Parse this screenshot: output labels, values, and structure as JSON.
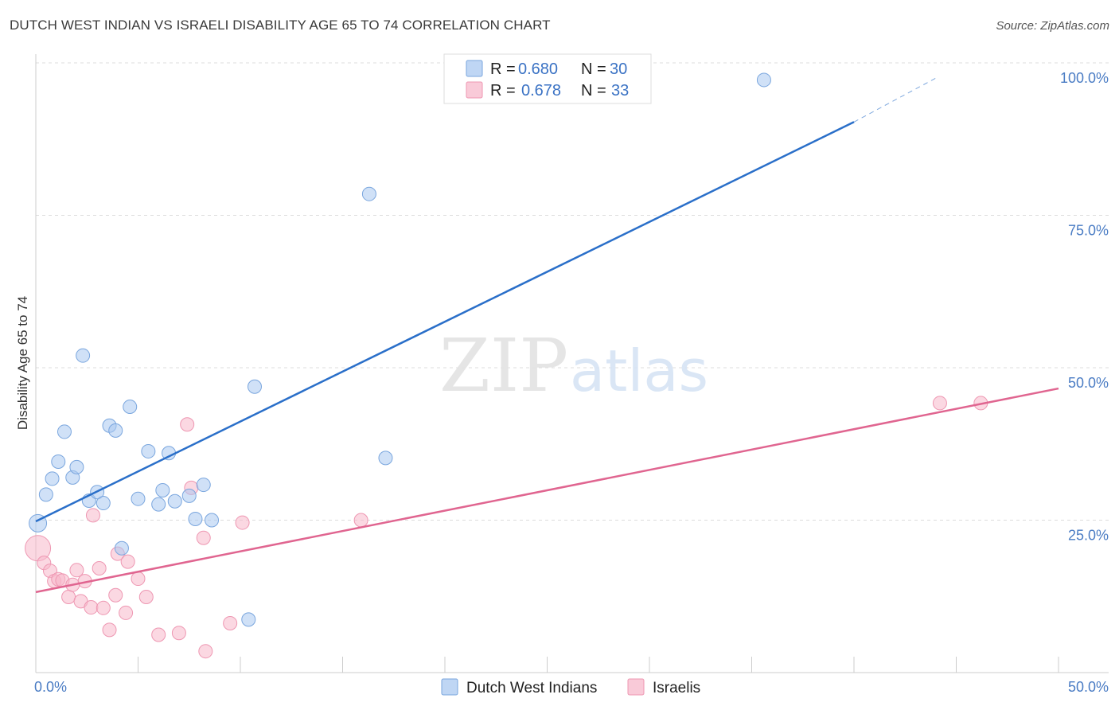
{
  "header": {
    "title": "DUTCH WEST INDIAN VS ISRAELI DISABILITY AGE 65 TO 74 CORRELATION CHART",
    "source": "Source: ZipAtlas.com"
  },
  "watermark": {
    "zip": "ZIP",
    "atlas": "atlas"
  },
  "legend": {
    "rows": [
      {
        "r_label": "R =",
        "r_value": "0.680",
        "n_label": "N =",
        "n_value": "30"
      },
      {
        "r_label": "R =",
        "r_value": "0.678",
        "n_label": "N =",
        "n_value": "33"
      }
    ]
  },
  "colors": {
    "blue_fill": "#a9c8f0",
    "blue_stroke": "#7aa6de",
    "blue_line": "#2a6fc9",
    "pink_fill": "#f7b8cb",
    "pink_stroke": "#ee97b2",
    "pink_line": "#e06590",
    "grid": "#dddddd",
    "axis_label": "#4a7cc4"
  },
  "chart_data": {
    "type": "scatter",
    "title": "DUTCH WEST INDIAN VS ISRAELI DISABILITY AGE 65 TO 74 CORRELATION CHART",
    "xlabel": "",
    "ylabel": "Disability Age 65 to 74",
    "xlim": [
      0,
      50
    ],
    "ylim": [
      0,
      100
    ],
    "x_tick_labels": [
      "0.0%",
      "50.0%"
    ],
    "y_ticks": [
      25,
      50,
      75,
      100
    ],
    "y_tick_labels": [
      "25.0%",
      "50.0%",
      "75.0%",
      "100.0%"
    ],
    "grid": true,
    "legend_position": "top-center",
    "series": [
      {
        "name": "Dutch West Indians",
        "color": "#a9c8f0",
        "points": [
          [
            0.1,
            24.5
          ],
          [
            0.5,
            29.2
          ],
          [
            0.8,
            31.8
          ],
          [
            1.1,
            34.6
          ],
          [
            1.4,
            39.5
          ],
          [
            1.8,
            32.0
          ],
          [
            2.0,
            33.7
          ],
          [
            2.3,
            52.0
          ],
          [
            2.6,
            28.2
          ],
          [
            3.0,
            29.6
          ],
          [
            3.3,
            27.8
          ],
          [
            3.6,
            40.5
          ],
          [
            3.9,
            39.7
          ],
          [
            4.2,
            20.4
          ],
          [
            4.6,
            43.6
          ],
          [
            5.0,
            28.5
          ],
          [
            5.5,
            36.3
          ],
          [
            6.0,
            27.6
          ],
          [
            6.2,
            29.9
          ],
          [
            6.5,
            36.0
          ],
          [
            6.8,
            28.1
          ],
          [
            7.5,
            29.0
          ],
          [
            7.8,
            25.2
          ],
          [
            8.2,
            30.8
          ],
          [
            8.6,
            25.0
          ],
          [
            10.4,
            8.7
          ],
          [
            10.7,
            46.9
          ],
          [
            16.3,
            78.5
          ],
          [
            17.1,
            35.2
          ],
          [
            35.6,
            97.2
          ]
        ],
        "trend": {
          "x": [
            0,
            40
          ],
          "y": [
            24.8,
            90.3
          ],
          "dashed_extension": {
            "x": [
              40,
              44
            ],
            "y": [
              90.3,
              97.5
            ]
          }
        }
      },
      {
        "name": "Israelis",
        "color": "#f7b8cb",
        "points": [
          [
            0.1,
            20.4
          ],
          [
            0.4,
            18.0
          ],
          [
            0.7,
            16.7
          ],
          [
            0.9,
            15.0
          ],
          [
            1.1,
            15.3
          ],
          [
            1.3,
            15.1
          ],
          [
            1.6,
            12.4
          ],
          [
            1.8,
            14.4
          ],
          [
            2.0,
            16.8
          ],
          [
            2.2,
            11.7
          ],
          [
            2.4,
            15.0
          ],
          [
            2.7,
            10.7
          ],
          [
            2.8,
            25.8
          ],
          [
            3.1,
            17.1
          ],
          [
            3.3,
            10.6
          ],
          [
            3.6,
            7.0
          ],
          [
            3.9,
            12.7
          ],
          [
            4.0,
            19.5
          ],
          [
            4.4,
            9.8
          ],
          [
            4.5,
            18.2
          ],
          [
            5.0,
            15.4
          ],
          [
            5.4,
            12.4
          ],
          [
            6.0,
            6.2
          ],
          [
            7.0,
            6.5
          ],
          [
            7.4,
            40.7
          ],
          [
            7.6,
            30.3
          ],
          [
            8.2,
            22.1
          ],
          [
            8.3,
            3.5
          ],
          [
            9.5,
            8.1
          ],
          [
            10.1,
            24.6
          ],
          [
            15.9,
            25.0
          ],
          [
            44.2,
            44.2
          ],
          [
            46.2,
            44.2
          ]
        ],
        "trend": {
          "x": [
            0,
            50
          ],
          "y": [
            13.2,
            46.6
          ]
        }
      }
    ]
  }
}
